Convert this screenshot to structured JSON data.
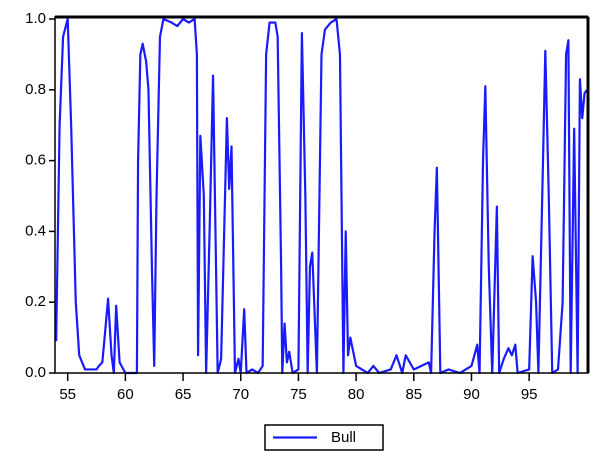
{
  "chart_data": {
    "type": "line",
    "x": [
      54.0,
      54.3,
      54.6,
      55.0,
      55.3,
      55.7,
      56.0,
      56.5,
      57.0,
      57.5,
      57.7,
      58.0,
      58.2,
      58.5,
      58.8,
      59.0,
      59.2,
      59.5,
      60.0,
      60.5,
      61.0,
      61.1,
      61.3,
      61.5,
      61.8,
      62.0,
      62.3,
      62.5,
      62.7,
      63.0,
      63.3,
      64.0,
      64.5,
      65.0,
      65.5,
      66.0,
      66.2,
      66.3,
      66.5,
      66.8,
      67.0,
      67.3,
      67.6,
      68.0,
      68.3,
      68.8,
      69.0,
      69.2,
      69.5,
      69.8,
      70.0,
      70.3,
      70.5,
      71.0,
      71.5,
      71.9,
      72.2,
      72.5,
      73.0,
      73.2,
      73.5,
      73.6,
      73.8,
      74.0,
      74.2,
      74.5,
      75.0,
      75.3,
      75.6,
      75.8,
      76.0,
      76.2,
      76.6,
      77.0,
      77.3,
      77.8,
      78.3,
      78.6,
      78.9,
      79.1,
      79.3,
      79.5,
      80.0,
      80.5,
      81.0,
      81.5,
      82.0,
      83.0,
      83.5,
      84.0,
      84.3,
      85.0,
      86.3,
      86.5,
      86.8,
      87.0,
      87.3,
      88.0,
      89.0,
      90.0,
      90.5,
      90.7,
      91.0,
      91.2,
      91.5,
      91.8,
      92.2,
      92.4,
      92.8,
      93.2,
      93.5,
      93.8,
      94.0,
      95.0,
      95.3,
      95.6,
      95.8,
      96.2,
      96.4,
      96.7,
      97.0,
      97.5,
      97.9,
      98.2,
      98.4,
      98.6,
      98.9,
      99.2,
      99.4,
      99.6,
      99.8,
      100.0
    ],
    "series": [
      {
        "name": "Bull",
        "color": "#1a1aff",
        "values": [
          0.09,
          0.7,
          0.95,
          1.0,
          0.7,
          0.2,
          0.05,
          0.01,
          0.01,
          0.01,
          0.02,
          0.03,
          0.1,
          0.21,
          0.05,
          0.0,
          0.19,
          0.03,
          0.0,
          0.0,
          0.0,
          0.6,
          0.9,
          0.93,
          0.88,
          0.8,
          0.3,
          0.02,
          0.5,
          0.95,
          1.0,
          0.99,
          0.98,
          1.0,
          0.99,
          1.0,
          0.9,
          0.05,
          0.67,
          0.5,
          0.0,
          0.4,
          0.84,
          0.0,
          0.04,
          0.72,
          0.52,
          0.64,
          0.0,
          0.04,
          0.0,
          0.18,
          0.0,
          0.01,
          0.0,
          0.02,
          0.9,
          0.99,
          0.99,
          0.95,
          0.3,
          0.0,
          0.14,
          0.03,
          0.06,
          0.0,
          0.01,
          0.96,
          0.5,
          0.0,
          0.3,
          0.34,
          0.0,
          0.9,
          0.97,
          0.99,
          1.0,
          0.9,
          0.0,
          0.4,
          0.05,
          0.1,
          0.02,
          0.01,
          0.0,
          0.02,
          0.0,
          0.01,
          0.05,
          0.0,
          0.05,
          0.01,
          0.03,
          0.0,
          0.4,
          0.58,
          0.0,
          0.01,
          0.0,
          0.02,
          0.08,
          0.0,
          0.6,
          0.81,
          0.3,
          0.0,
          0.47,
          0.0,
          0.04,
          0.07,
          0.05,
          0.08,
          0.0,
          0.01,
          0.33,
          0.2,
          0.0,
          0.6,
          0.91,
          0.5,
          0.0,
          0.01,
          0.2,
          0.9,
          0.94,
          0.0,
          0.69,
          0.0,
          0.83,
          0.72,
          0.79,
          0.8
        ]
      }
    ],
    "xlim": [
      53.9,
      100.1
    ],
    "xticks": [
      55,
      60,
      65,
      70,
      75,
      80,
      85,
      90,
      95
    ],
    "ylim": [
      0,
      1
    ],
    "yticks": [
      {
        "value": 0,
        "label": "0.0"
      },
      0.2,
      0.4,
      0.6,
      0.8,
      {
        "value": 1,
        "label": "1.0"
      }
    ],
    "legend": "bottom"
  }
}
